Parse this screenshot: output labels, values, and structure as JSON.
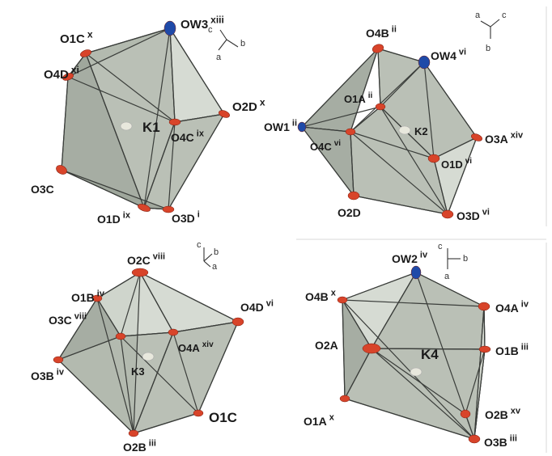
{
  "colors": {
    "oxygen": "#d8442a",
    "water_oxygen": "#1f4aa8",
    "potassium": "#e8e8dd",
    "face_dark": "#9ea69b",
    "face_mid": "#b4bbb0",
    "face_light": "#d3d8cf"
  },
  "panels": [
    {
      "center": {
        "label": "K1"
      },
      "axes": {
        "a": "a",
        "b": "b",
        "c": "c"
      },
      "atoms": [
        {
          "text": "OW3",
          "sup": "xiii",
          "kind": "water"
        },
        {
          "text": "O1C",
          "sup": "x",
          "kind": "oxygen"
        },
        {
          "text": "O4D",
          "sup": "xi",
          "kind": "oxygen"
        },
        {
          "text": "O2D",
          "sup": "x",
          "kind": "oxygen"
        },
        {
          "text": "O4C",
          "sup": "ix",
          "kind": "oxygen"
        },
        {
          "text": "O3C",
          "sup": "",
          "kind": "oxygen"
        },
        {
          "text": "O1D",
          "sup": "ix",
          "kind": "oxygen"
        },
        {
          "text": "O3D",
          "sup": "i",
          "kind": "oxygen"
        }
      ]
    },
    {
      "center": {
        "label": "K2"
      },
      "axes": {
        "a": "a",
        "b": "b",
        "c": "c"
      },
      "atoms": [
        {
          "text": "O4B",
          "sup": "ii",
          "kind": "oxygen"
        },
        {
          "text": "OW4",
          "sup": "vi",
          "kind": "water"
        },
        {
          "text": "O1A",
          "sup": "ii",
          "kind": "oxygen"
        },
        {
          "text": "OW1",
          "sup": "ii",
          "kind": "water"
        },
        {
          "text": "O4C",
          "sup": "vi",
          "kind": "oxygen"
        },
        {
          "text": "O3A",
          "sup": "xiv",
          "kind": "oxygen"
        },
        {
          "text": "O1D",
          "sup": "vi",
          "kind": "oxygen"
        },
        {
          "text": "O2D",
          "sup": "",
          "kind": "oxygen"
        },
        {
          "text": "O3D",
          "sup": "vi",
          "kind": "oxygen"
        }
      ]
    },
    {
      "center": {
        "label": "K3"
      },
      "axes": {
        "a": "a",
        "b": "b",
        "c": "c"
      },
      "atoms": [
        {
          "text": "O2C",
          "sup": "viii",
          "kind": "oxygen"
        },
        {
          "text": "O1B",
          "sup": "iv",
          "kind": "oxygen"
        },
        {
          "text": "O3C",
          "sup": "viii",
          "kind": "oxygen"
        },
        {
          "text": "O4D",
          "sup": "vi",
          "kind": "oxygen"
        },
        {
          "text": "O4A",
          "sup": "xiv",
          "kind": "oxygen"
        },
        {
          "text": "O3B",
          "sup": "iv",
          "kind": "oxygen"
        },
        {
          "text": "O1C",
          "sup": "",
          "kind": "oxygen"
        },
        {
          "text": "O2B",
          "sup": "iii",
          "kind": "oxygen"
        }
      ]
    },
    {
      "center": {
        "label": "K4"
      },
      "axes": {
        "a": "a",
        "b": "b",
        "c": "c"
      },
      "atoms": [
        {
          "text": "OW2",
          "sup": "iv",
          "kind": "water"
        },
        {
          "text": "O4B",
          "sup": "x",
          "kind": "oxygen"
        },
        {
          "text": "O4A",
          "sup": "iv",
          "kind": "oxygen"
        },
        {
          "text": "O2A",
          "sup": "",
          "kind": "oxygen"
        },
        {
          "text": "O1B",
          "sup": "iii",
          "kind": "oxygen"
        },
        {
          "text": "O1A",
          "sup": "x",
          "kind": "oxygen"
        },
        {
          "text": "O2B",
          "sup": "xv",
          "kind": "oxygen"
        },
        {
          "text": "O3B",
          "sup": "iii",
          "kind": "oxygen"
        }
      ]
    }
  ]
}
